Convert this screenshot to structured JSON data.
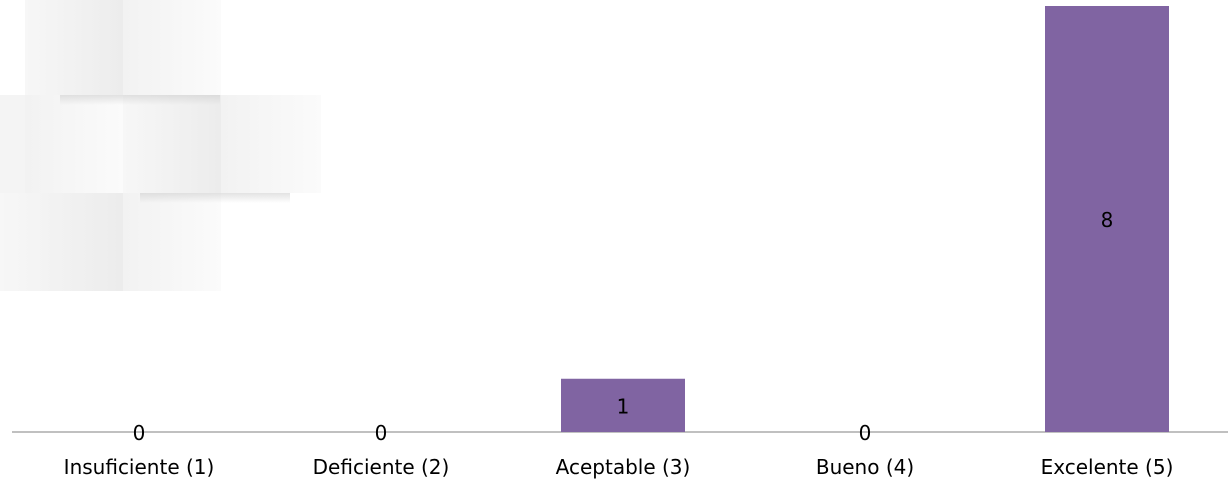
{
  "chart_data": {
    "type": "bar",
    "categories": [
      "Insuficiente (1)",
      "Deficiente (2)",
      "Aceptable (3)",
      "Bueno (4)",
      "Excelente (5)"
    ],
    "values": [
      0,
      0,
      1,
      0,
      8
    ],
    "color": "#8064a2"
  }
}
